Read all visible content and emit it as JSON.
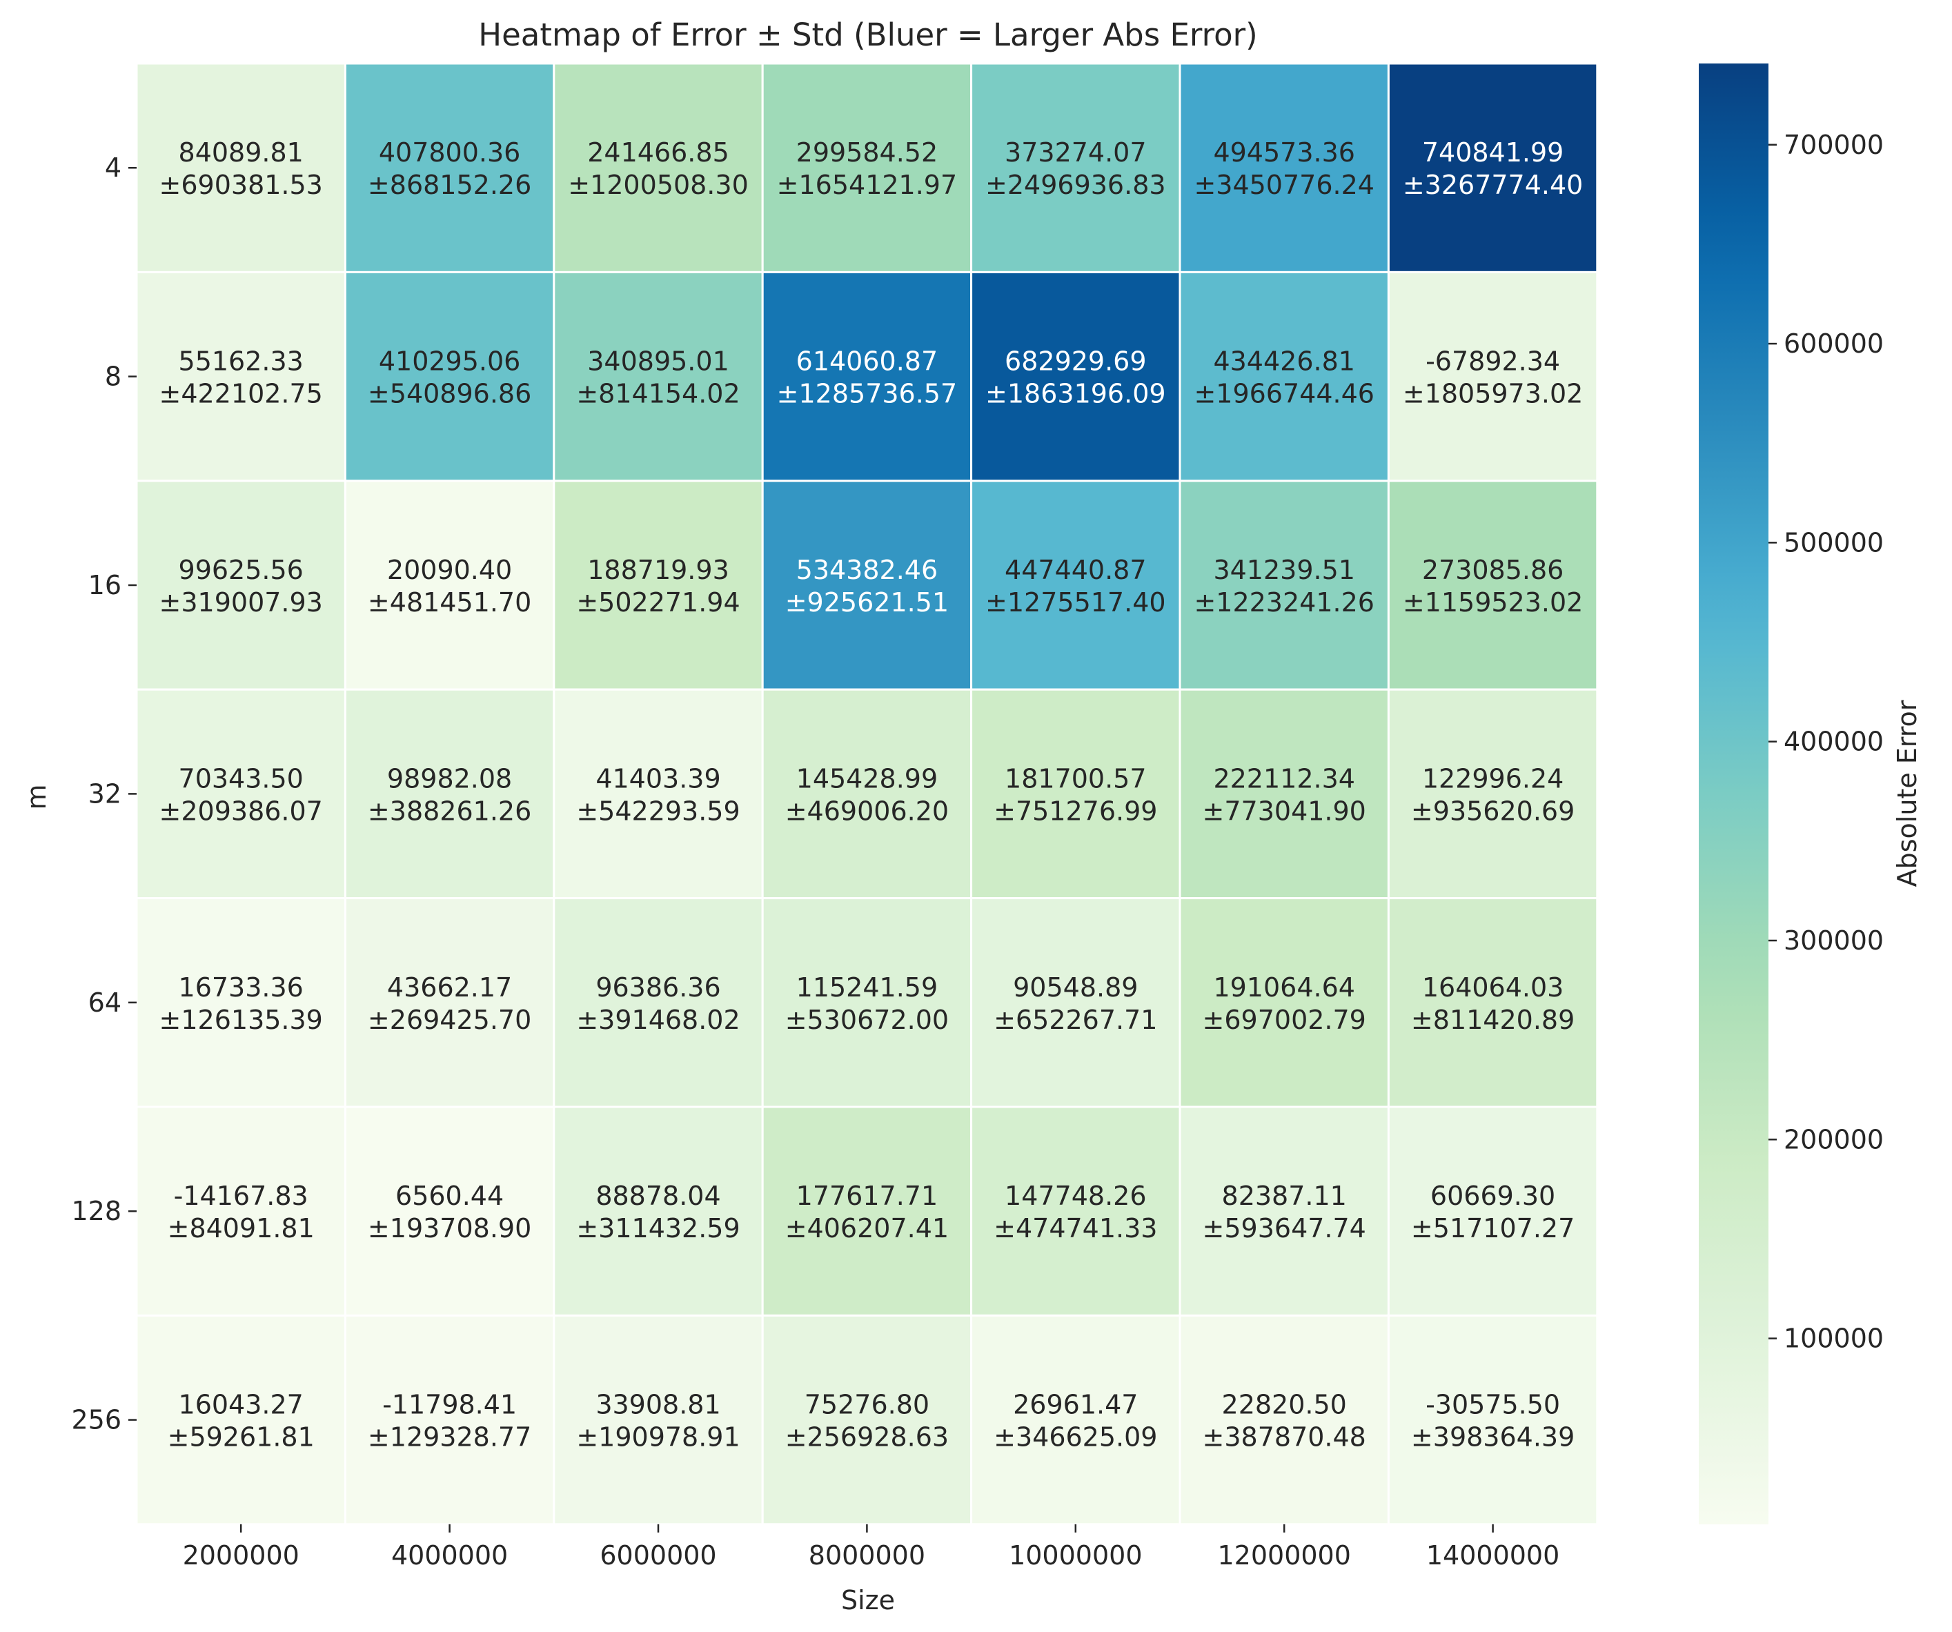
{
  "chart_data": {
    "type": "heatmap",
    "title": "Heatmap of Error ± Std (Bluer = Larger Abs Error)",
    "xlabel": "Size",
    "ylabel": "m",
    "x_categories": [
      "2000000",
      "4000000",
      "6000000",
      "8000000",
      "10000000",
      "12000000",
      "14000000"
    ],
    "y_categories": [
      "4",
      "8",
      "16",
      "32",
      "64",
      "128",
      "256"
    ],
    "values": [
      [
        84089.81,
        407800.36,
        241466.85,
        299584.52,
        373274.07,
        494573.36,
        740841.99
      ],
      [
        55162.33,
        410295.06,
        340895.01,
        614060.87,
        682929.69,
        434426.81,
        -67892.34
      ],
      [
        99625.56,
        20090.4,
        188719.93,
        534382.46,
        447440.87,
        341239.51,
        273085.86
      ],
      [
        70343.5,
        98982.08,
        41403.39,
        145428.99,
        181700.57,
        222112.34,
        122996.24
      ],
      [
        16733.36,
        43662.17,
        96386.36,
        115241.59,
        90548.89,
        191064.64,
        164064.03
      ],
      [
        -14167.83,
        6560.44,
        88878.04,
        177617.71,
        147748.26,
        82387.11,
        60669.3
      ],
      [
        16043.27,
        -11798.41,
        33908.81,
        75276.8,
        26961.47,
        22820.5,
        -30575.5
      ]
    ],
    "cell_labels": [
      [
        "84089.81",
        "407800.36",
        "241466.85",
        "299584.52",
        "373274.07",
        "494573.36",
        "740841.99"
      ],
      [
        "55162.33",
        "410295.06",
        "340895.01",
        "614060.87",
        "682929.69",
        "434426.81",
        "-67892.34"
      ],
      [
        "99625.56",
        "20090.40",
        "188719.93",
        "534382.46",
        "447440.87",
        "341239.51",
        "273085.86"
      ],
      [
        "70343.50",
        "98982.08",
        "41403.39",
        "145428.99",
        "181700.57",
        "222112.34",
        "122996.24"
      ],
      [
        "16733.36",
        "43662.17",
        "96386.36",
        "115241.59",
        "90548.89",
        "191064.64",
        "164064.03"
      ],
      [
        "-14167.83",
        "6560.44",
        "88878.04",
        "177617.71",
        "147748.26",
        "82387.11",
        "60669.30"
      ],
      [
        "16043.27",
        "-11798.41",
        "33908.81",
        "75276.80",
        "26961.47",
        "22820.50",
        "-30575.50"
      ]
    ],
    "std_labels": [
      [
        "±690381.53",
        "±868152.26",
        "±1200508.30",
        "±1654121.97",
        "±2496936.83",
        "±3450776.24",
        "±3267774.40"
      ],
      [
        "±422102.75",
        "±540896.86",
        "±814154.02",
        "±1285736.57",
        "±1863196.09",
        "±1966744.46",
        "±1805973.02"
      ],
      [
        "±319007.93",
        "±481451.70",
        "±502271.94",
        "±925621.51",
        "±1275517.40",
        "±1223241.26",
        "±1159523.02"
      ],
      [
        "±209386.07",
        "±388261.26",
        "±542293.59",
        "±469006.20",
        "±751276.99",
        "±773041.90",
        "±935620.69"
      ],
      [
        "±126135.39",
        "±269425.70",
        "±391468.02",
        "±530672.00",
        "±652267.71",
        "±697002.79",
        "±811420.89"
      ],
      [
        "±84091.81",
        "±193708.90",
        "±311432.59",
        "±406207.41",
        "±474741.33",
        "±593647.74",
        "±517107.27"
      ],
      [
        "±59261.81",
        "±129328.77",
        "±190978.91",
        "±256928.63",
        "±346625.09",
        "±387870.48",
        "±398364.39"
      ]
    ],
    "color_metric": "absolute value",
    "colorbar": {
      "label": "Absolute Error",
      "colormap": "GnBu",
      "range": [
        6560.44,
        740841.99
      ],
      "ticks": [
        100000,
        200000,
        300000,
        400000,
        500000,
        600000,
        700000
      ],
      "tick_labels": [
        "100000",
        "200000",
        "300000",
        "400000",
        "500000",
        "600000",
        "700000"
      ]
    },
    "colormap_stops": [
      "#f7fcf0",
      "#e0f3db",
      "#ccebc5",
      "#a8ddb5",
      "#7bccc4",
      "#4eb3d3",
      "#2b8cbe",
      "#0868ac",
      "#084081"
    ],
    "cell_border_color": "#ffffff",
    "text_colors": {
      "dark": "#262626",
      "light": "#ffffff"
    }
  }
}
